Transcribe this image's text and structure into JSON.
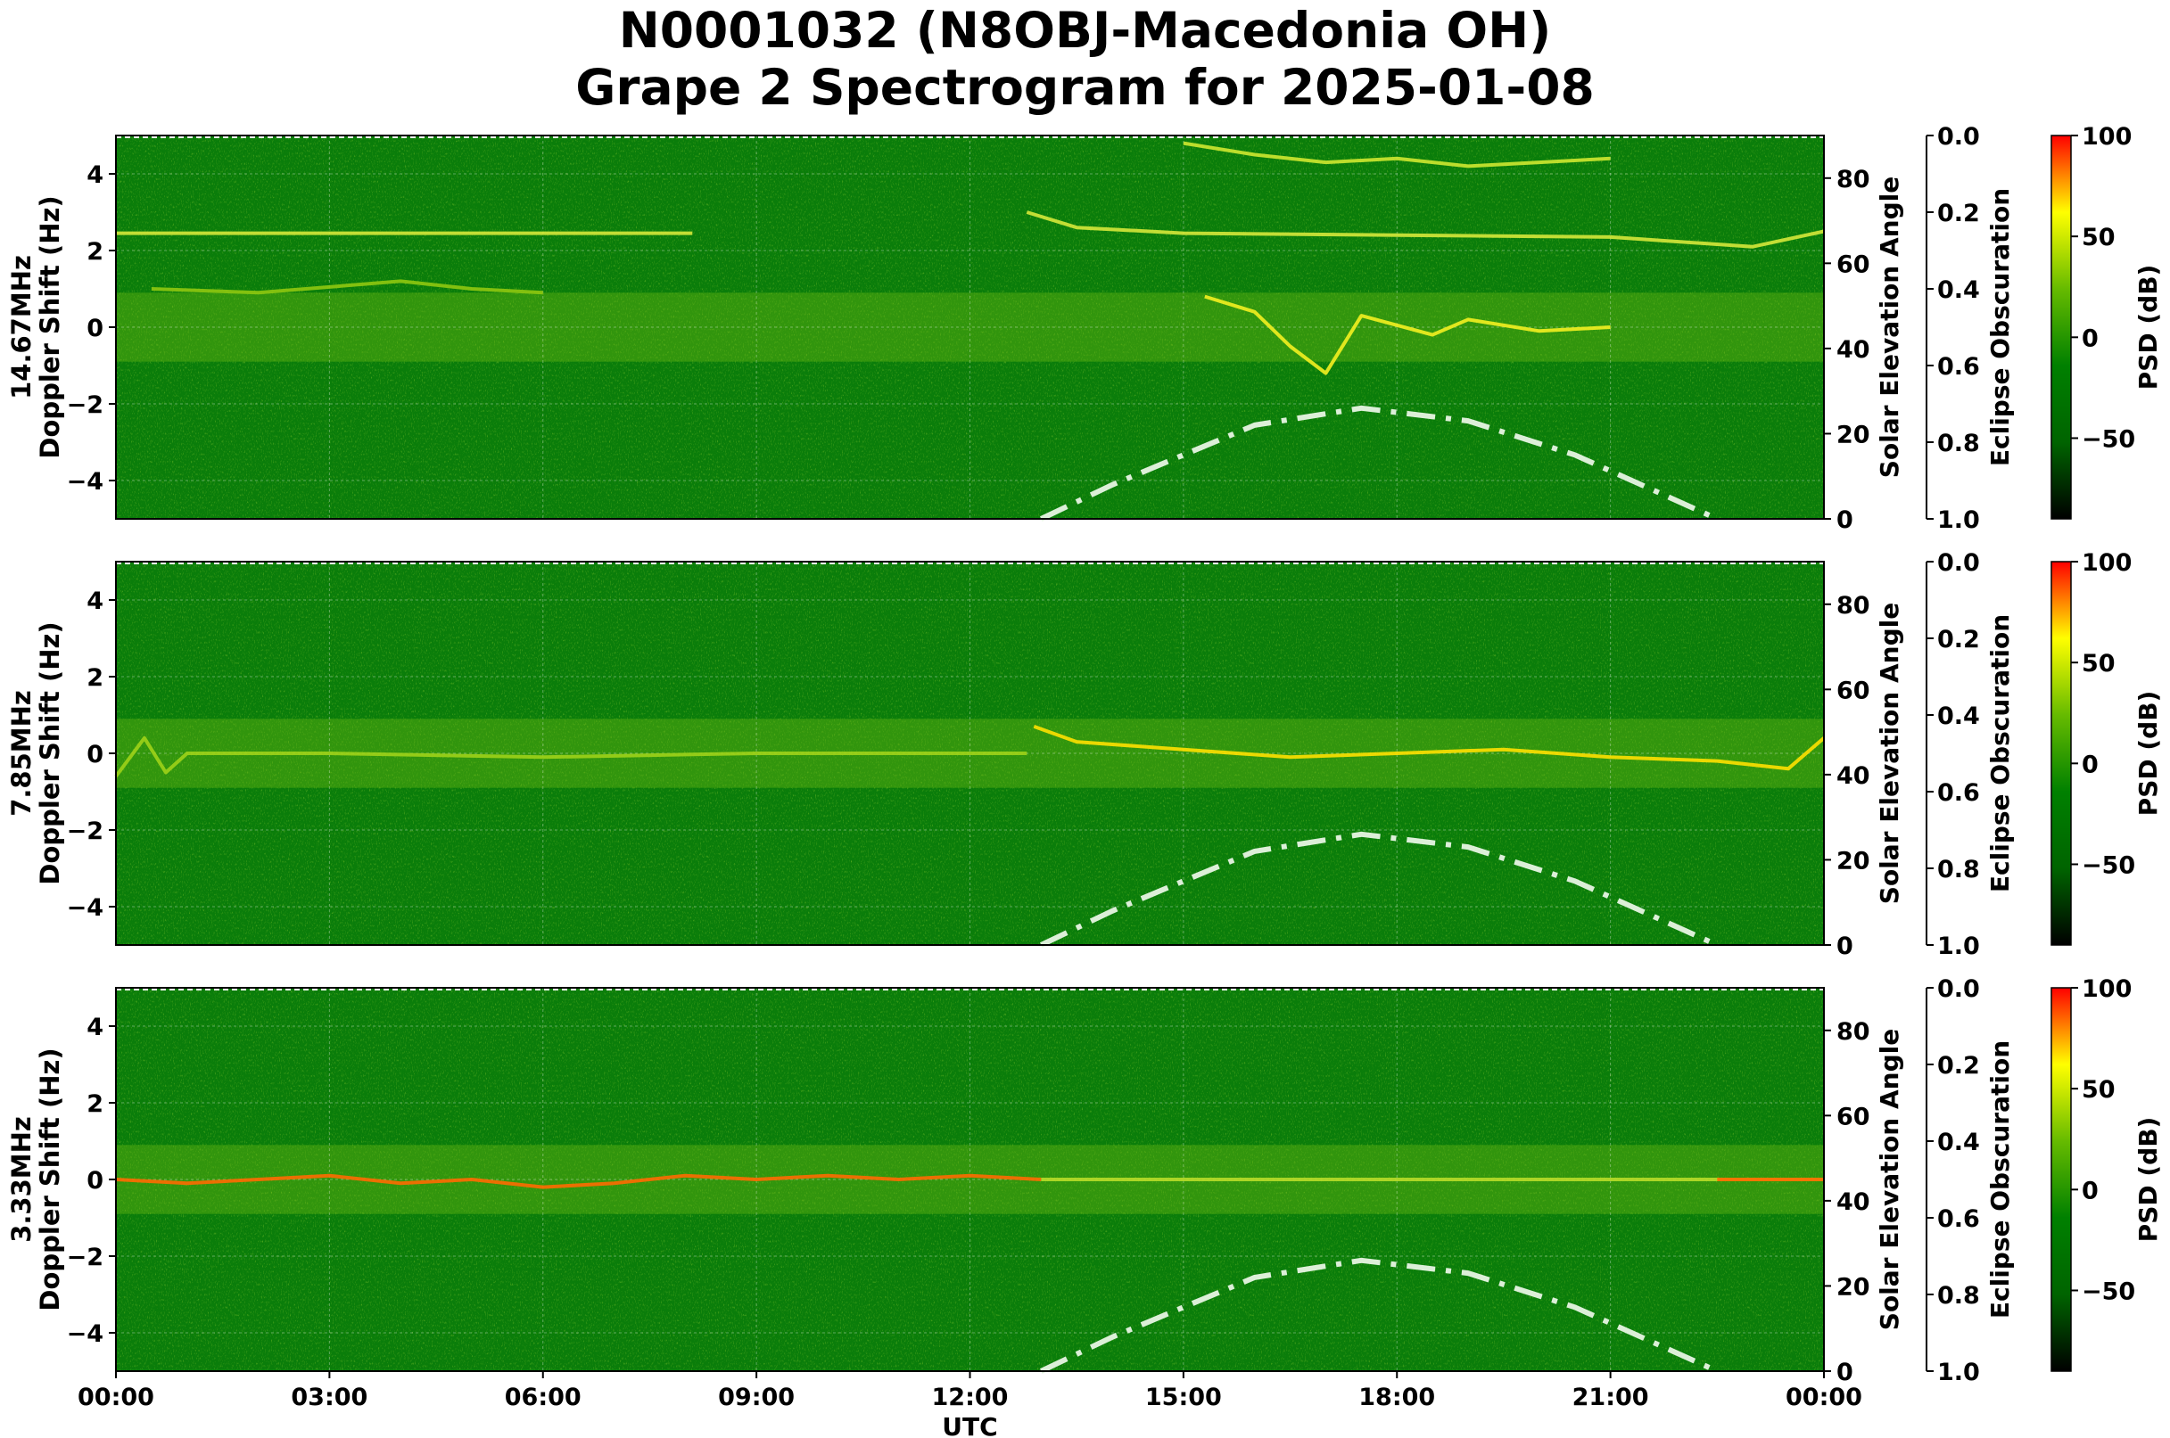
{
  "chart_data": {
    "type": "heatmap",
    "title_line1": "N0001032 (N8OBJ-Macedonia OH)",
    "title_line2": "Grape 2 Spectrogram for 2025-01-08",
    "xlabel": "UTC",
    "x_ticks": [
      "00:00",
      "03:00",
      "06:00",
      "09:00",
      "12:00",
      "15:00",
      "18:00",
      "21:00",
      "00:00"
    ],
    "y_range": [
      -5,
      5
    ],
    "y_ticks": [
      "4",
      "2",
      "0",
      "−2",
      "−4"
    ],
    "elev_label": "Solar Elevation Angle",
    "elev_ticks": [
      "80",
      "60",
      "40",
      "20",
      "0"
    ],
    "elev_range": [
      0,
      90
    ],
    "ecl_label": "Eclipse Obscuration",
    "ecl_ticks": [
      "0.0",
      "0.2",
      "0.4",
      "0.6",
      "0.8",
      "1.0"
    ],
    "psd_label": "PSD (dB)",
    "psd_ticks": [
      "100",
      "50",
      "0",
      "−50"
    ],
    "psd_range": [
      -90,
      100
    ],
    "colormap": [
      "#000000",
      "#006400",
      "#008000",
      "#66bb00",
      "#ffff00",
      "#ff0000"
    ],
    "grid": true,
    "panels": [
      {
        "ylabel_line1": "14.67MHz",
        "ylabel_line2": "Doppler Shift (Hz)",
        "traces": [
          {
            "t_hours": [
              0.0,
              8.1
            ],
            "doppler_hz": [
              2.45,
              2.45
            ],
            "color": "#d6e83a"
          },
          {
            "t_hours": [
              12.8,
              13.5,
              15.0,
              18.0,
              21.0,
              23.0,
              24.0
            ],
            "doppler_hz": [
              3.0,
              2.6,
              2.45,
              2.4,
              2.35,
              2.1,
              2.5
            ],
            "color": "#d6e83a"
          },
          {
            "t_hours": [
              0.5,
              2.0,
              4.0,
              5.0,
              6.0
            ],
            "doppler_hz": [
              1.0,
              0.9,
              1.2,
              1.0,
              0.9
            ],
            "color": "#8fc80f"
          },
          {
            "t_hours": [
              15.0,
              16.0,
              17.0,
              18.0,
              19.0,
              20.0,
              21.0
            ],
            "doppler_hz": [
              4.8,
              4.5,
              4.3,
              4.4,
              4.2,
              4.3,
              4.4
            ],
            "color": "#cfe830"
          },
          {
            "t_hours": [
              15.3,
              16.0,
              16.5,
              17.0,
              17.5,
              18.5,
              19.0,
              20.0,
              21.0
            ],
            "doppler_hz": [
              0.8,
              0.4,
              -0.5,
              -1.2,
              0.3,
              -0.2,
              0.2,
              -0.1,
              0.0
            ],
            "color": "#f4f020"
          }
        ],
        "solar_elevation_deg": [
          [
            13.0,
            0
          ],
          [
            14.0,
            8
          ],
          [
            15.0,
            15
          ],
          [
            16.0,
            22
          ],
          [
            17.5,
            26
          ],
          [
            19.0,
            23
          ],
          [
            20.5,
            15
          ],
          [
            22.5,
            0
          ]
        ]
      },
      {
        "ylabel_line1": "7.85MHz",
        "ylabel_line2": "Doppler Shift (Hz)",
        "traces": [
          {
            "t_hours": [
              0.0,
              0.4,
              0.7,
              1.0,
              3.0,
              6.0,
              9.0,
              12.0,
              12.8
            ],
            "doppler_hz": [
              -0.6,
              0.4,
              -0.5,
              0.0,
              0.0,
              -0.1,
              0.0,
              0.0,
              0.0
            ],
            "color": "#9fd218"
          },
          {
            "t_hours": [
              12.9,
              13.5,
              15.0,
              16.5,
              18.0,
              19.5,
              21.0,
              22.5,
              23.5,
              24.0
            ],
            "doppler_hz": [
              0.7,
              0.3,
              0.1,
              -0.1,
              0.0,
              0.1,
              -0.1,
              -0.2,
              -0.4,
              0.4
            ],
            "color": "#ffe000"
          }
        ],
        "solar_elevation_deg": [
          [
            13.0,
            0
          ],
          [
            14.0,
            8
          ],
          [
            15.0,
            15
          ],
          [
            16.0,
            22
          ],
          [
            17.5,
            26
          ],
          [
            19.0,
            23
          ],
          [
            20.5,
            15
          ],
          [
            22.5,
            0
          ]
        ]
      },
      {
        "ylabel_line1": "3.33MHz",
        "ylabel_line2": "Doppler Shift (Hz)",
        "traces": [
          {
            "t_hours": [
              0.0,
              1.0,
              2.0,
              3.0,
              4.0,
              5.0,
              6.0,
              7.0,
              8.0,
              9.0,
              10.0,
              11.0,
              12.0,
              13.0
            ],
            "doppler_hz": [
              0.0,
              -0.1,
              0.0,
              0.1,
              -0.1,
              0.0,
              -0.2,
              -0.1,
              0.1,
              0.0,
              0.1,
              0.0,
              0.1,
              0.0
            ],
            "color": "#ff6a00"
          },
          {
            "t_hours": [
              13.0,
              24.0
            ],
            "doppler_hz": [
              0.0,
              0.0
            ],
            "color": "#b8dc28"
          },
          {
            "t_hours": [
              22.5,
              24.0
            ],
            "doppler_hz": [
              0.0,
              0.0
            ],
            "color": "#ff6a00"
          }
        ],
        "solar_elevation_deg": [
          [
            13.0,
            0
          ],
          [
            14.0,
            8
          ],
          [
            15.0,
            15
          ],
          [
            16.0,
            22
          ],
          [
            17.5,
            26
          ],
          [
            19.0,
            23
          ],
          [
            20.5,
            15
          ],
          [
            22.5,
            0
          ]
        ]
      }
    ]
  }
}
